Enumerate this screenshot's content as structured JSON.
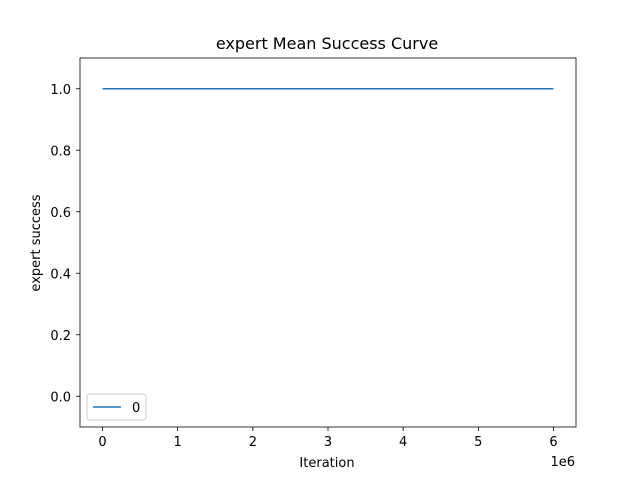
{
  "chart_data": {
    "type": "line",
    "title": "expert Mean Success Curve",
    "xlabel": "Iteration",
    "ylabel": "expert success",
    "x_offset_label": "1e6",
    "xlim": [
      -0.3,
      6.3
    ],
    "ylim": [
      -0.1,
      1.1
    ],
    "xticks": [
      0,
      1,
      2,
      3,
      4,
      5,
      6
    ],
    "xtick_labels": [
      "0",
      "1",
      "2",
      "3",
      "4",
      "5",
      "6"
    ],
    "yticks": [
      0.0,
      0.2,
      0.4,
      0.6,
      0.8,
      1.0
    ],
    "ytick_labels": [
      "0.0",
      "0.2",
      "0.4",
      "0.6",
      "0.8",
      "1.0"
    ],
    "grid": false,
    "legend_position": "lower-left",
    "series": [
      {
        "name": "0",
        "color": "#1f77b4",
        "x": [
          0,
          6
        ],
        "y": [
          1.0,
          1.0
        ]
      }
    ]
  }
}
